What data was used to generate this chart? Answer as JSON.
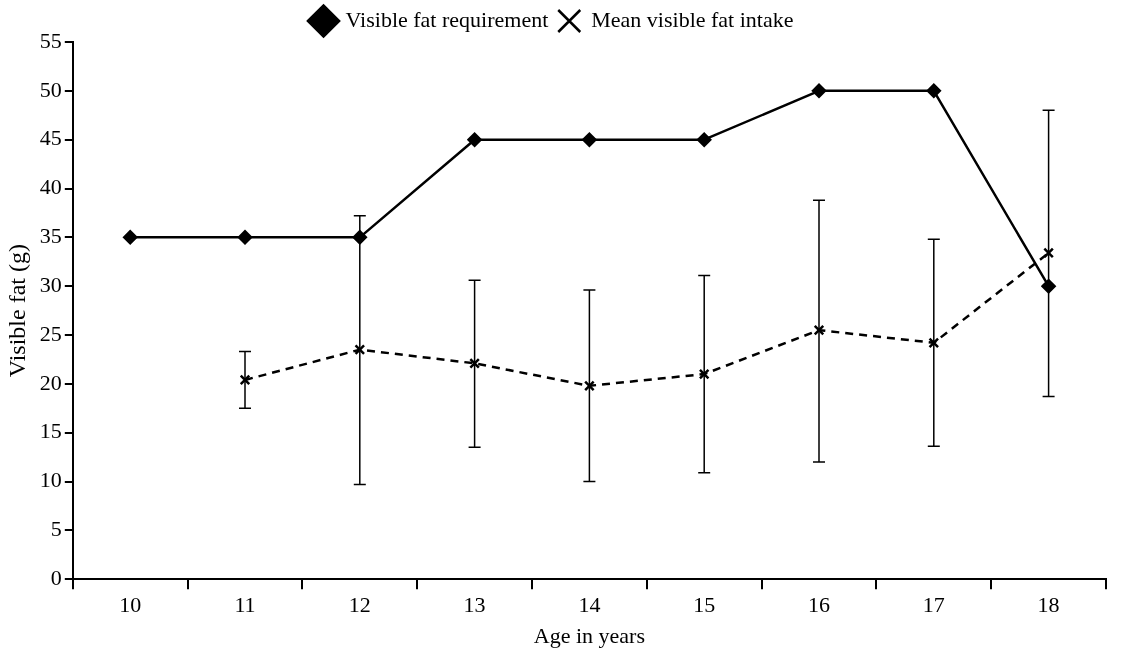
{
  "chart_data": {
    "type": "line",
    "xlabel": "Age in years",
    "ylabel": "Visible fat (g)",
    "categories": [
      "10",
      "11",
      "12",
      "13",
      "14",
      "15",
      "16",
      "17",
      "18"
    ],
    "series": [
      {
        "name": "Visible fat requirement",
        "color": "#000000",
        "marker": "diamond",
        "line_style": "solid",
        "values": [
          35,
          35,
          35,
          45,
          45,
          45,
          50,
          50,
          30
        ]
      },
      {
        "name": "Mean visible fat intake",
        "color": "#000000",
        "marker": "cross",
        "line_style": "dashed",
        "values": [
          null,
          20.4,
          23.5,
          22.1,
          19.8,
          21.0,
          25.5,
          24.2,
          33.4
        ],
        "errors": [
          null,
          [
            17.5,
            23.3
          ],
          [
            9.7,
            37.2
          ],
          [
            13.5,
            30.6
          ],
          [
            10.0,
            29.6
          ],
          [
            10.9,
            31.1
          ],
          [
            12.0,
            38.8
          ],
          [
            13.6,
            34.8
          ],
          [
            18.7,
            48.0
          ]
        ]
      }
    ],
    "ylim": [
      0,
      55
    ],
    "yticks": [
      0,
      5,
      10,
      15,
      20,
      25,
      30,
      35,
      40,
      45,
      50,
      55
    ],
    "grid": false,
    "legend": "top"
  }
}
